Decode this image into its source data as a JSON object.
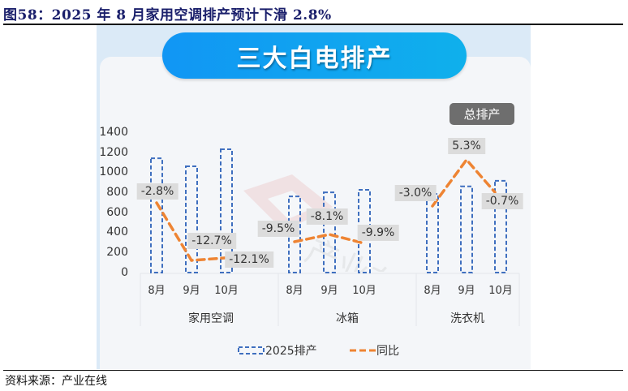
{
  "figure": {
    "title": "图58：2025 年 8 月家用空调排产预计下滑 2.8%",
    "source": "资料来源：产业在线"
  },
  "panel": {
    "banner": "三大白电排产",
    "badge": "总排产",
    "watermark": "产业在线"
  },
  "legend": {
    "bar_label": "2025排产",
    "line_label": "同比"
  },
  "colors": {
    "bar_border": "#3f6fbf",
    "line": "#ee8433",
    "banner": "#1196f4",
    "badge_bg": "#6e6e6e",
    "panel_bg": "#dbeaf7",
    "label_bg": "#dcdcdc"
  },
  "chart_data": {
    "type": "bar",
    "title": "三大白电排产",
    "xlabel": "",
    "ylabel": "",
    "ylim": [
      0,
      1400
    ],
    "yticks": [
      0,
      200,
      400,
      600,
      800,
      1000,
      1200,
      1400
    ],
    "grid": false,
    "legend_position": "bottom",
    "groups": [
      "家用空调",
      "冰箱",
      "洗衣机"
    ],
    "categories": [
      "8月",
      "9月",
      "10月",
      "8月",
      "9月",
      "10月",
      "8月",
      "9月",
      "10月"
    ],
    "series": [
      {
        "name": "2025排产",
        "type": "bar",
        "values": [
          1140,
          1060,
          1230,
          760,
          800,
          825,
          785,
          860,
          915
        ]
      },
      {
        "name": "同比",
        "type": "line",
        "unit": "%",
        "values": [
          -2.8,
          -12.7,
          -12.1,
          -9.5,
          -8.1,
          -9.9,
          -3.0,
          5.3,
          -0.7
        ],
        "labels": [
          "-2.8%",
          "-12.7%",
          "-12.1%",
          "-9.5%",
          "-8.1%",
          "-9.9%",
          "-3.0%",
          "5.3%",
          "-0.7%"
        ]
      }
    ]
  },
  "axis": {
    "yticks": [
      "0",
      "200",
      "400",
      "600",
      "800",
      "1000",
      "1200",
      "1400"
    ],
    "months": [
      "8月",
      "9月",
      "10月",
      "8月",
      "9月",
      "10月",
      "8月",
      "9月",
      "10月"
    ],
    "groups": [
      "家用空调",
      "冰箱",
      "洗衣机"
    ]
  },
  "labels": [
    "-2.8%",
    "-12.7%",
    "-12.1%",
    "-9.5%",
    "-8.1%",
    "-9.9%",
    "-3.0%",
    "5.3%",
    "-0.7%"
  ]
}
